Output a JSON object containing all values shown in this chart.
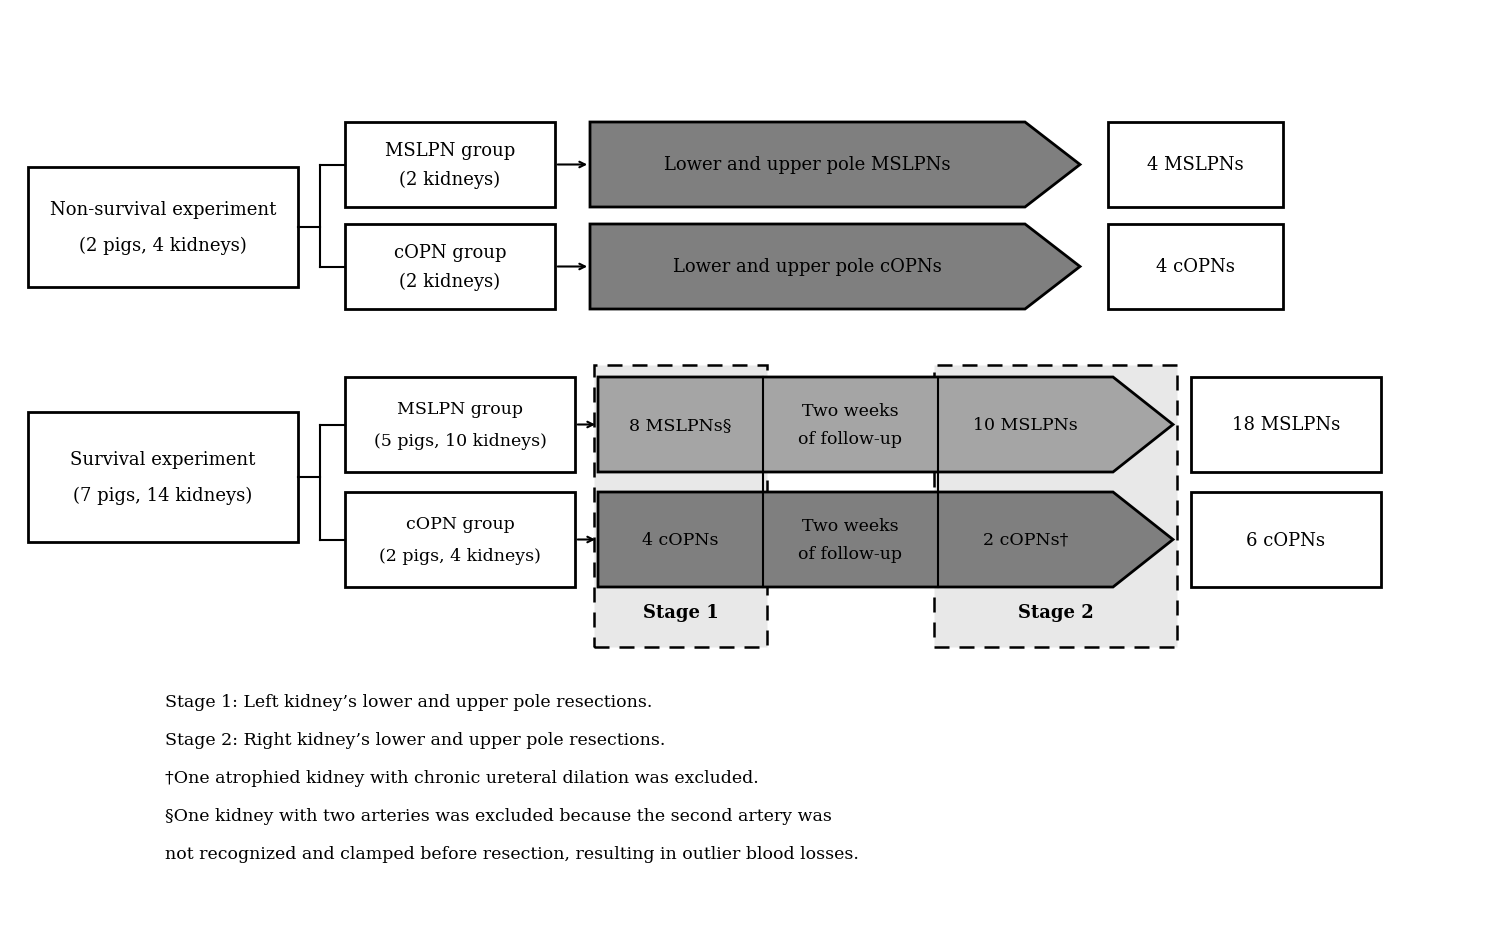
{
  "bg_color": "#ffffff",
  "text_color": "#000000",
  "dark_gray": "#7f7f7f",
  "medium_gray": "#a5a5a5",
  "light_gray": "#bfbfbf",
  "footnote1": "Stage 1: Left kidney’s lower and upper pole resections.",
  "footnote2": "Stage 2: Right kidney’s lower and upper pole resections.",
  "footnote3": "†One atrophied kidney with chronic ureteral dilation was excluded.",
  "footnote4a": "§One kidney with two arteries was excluded because the second artery was",
  "footnote4b": "not recognized and clamped before resection, resulting in outlier blood losses."
}
